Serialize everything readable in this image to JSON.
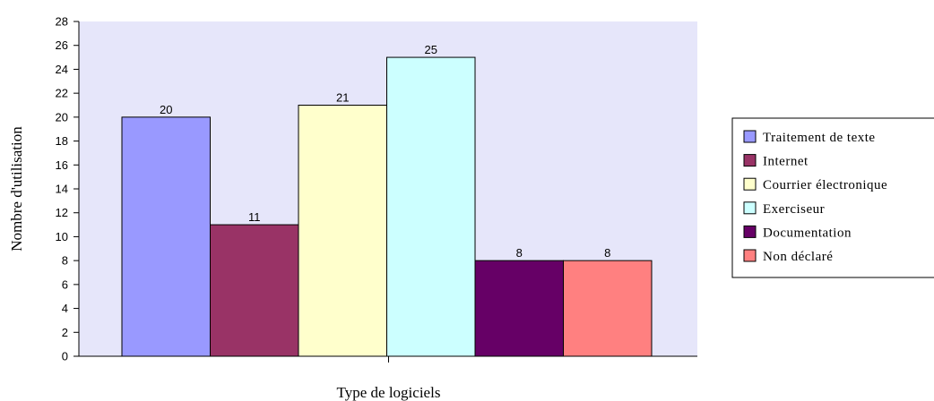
{
  "chart_data": {
    "type": "bar",
    "xlabel": "Type de logiciels",
    "ylabel": "Nombre d'utilisation",
    "ylim": [
      0,
      28
    ],
    "ytick_step": 2,
    "grid": false,
    "plot_background": "#E6E6FA",
    "legend_position": "right",
    "series": [
      {
        "name": "Traitement de texte",
        "value": 20,
        "color": "#9999FF"
      },
      {
        "name": "Internet",
        "value": 11,
        "color": "#993366"
      },
      {
        "name": "Courrier électronique",
        "value": 21,
        "color": "#FFFFCC"
      },
      {
        "name": "Exerciseur",
        "value": 25,
        "color": "#CCFFFF"
      },
      {
        "name": "Documentation",
        "value": 8,
        "color": "#660066"
      },
      {
        "name": "Non déclaré",
        "value": 8,
        "color": "#FF8080"
      }
    ]
  }
}
